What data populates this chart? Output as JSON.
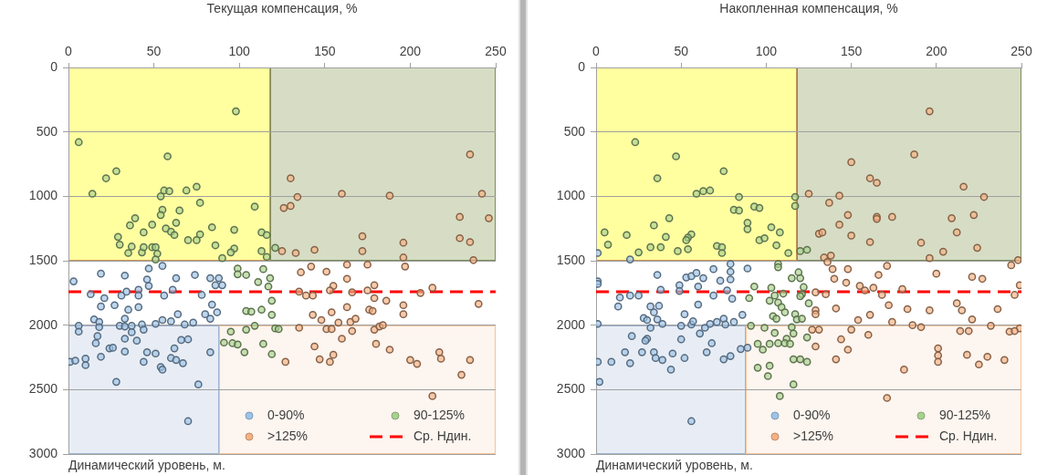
{
  "chart_data": [
    {
      "type": "scatter",
      "xlabel": "Текущая компенсация, %",
      "annotations": [
        "Динамический уровень, м."
      ],
      "xlim": [
        0,
        250
      ],
      "xticks": [
        0,
        50,
        100,
        150,
        200,
        250
      ],
      "ylim": [
        3000,
        0
      ],
      "yticks": [
        0,
        500,
        1000,
        1500,
        2000,
        2500,
        3000
      ],
      "grid": "y",
      "legend": "bottom right",
      "marker": "circle",
      "ref_lines": [
        {
          "axis": "y",
          "value": 1740,
          "label": "Ср. Ндин.",
          "color": "#ff0000",
          "line_style": "dashed"
        }
      ],
      "series": [
        {
          "name": "0-90%",
          "color": "#9dc3e6",
          "x": [
            3,
            19,
            33,
            47,
            55,
            46,
            47,
            63,
            74,
            83,
            88,
            86,
            90,
            61,
            13,
            21,
            31,
            34,
            41,
            41,
            56,
            78,
            19,
            27,
            35,
            41,
            84,
            87,
            80,
            64,
            83,
            15,
            18,
            6,
            6,
            18,
            30,
            33,
            33,
            37,
            43,
            44,
            37,
            51,
            55,
            60,
            68,
            73,
            17,
            16,
            33,
            40,
            24,
            26,
            33,
            19,
            46,
            51,
            44,
            62,
            66,
            70,
            83,
            1,
            4,
            10,
            10,
            54,
            55,
            60,
            63,
            67,
            28,
            76,
            70
          ],
          "values": [
            1660,
            1600,
            1615,
            1560,
            1540,
            1645,
            1695,
            1635,
            1610,
            1635,
            1635,
            1690,
            1690,
            1725,
            1760,
            1790,
            1770,
            1740,
            1725,
            1770,
            1770,
            1765,
            1855,
            1845,
            1880,
            1860,
            1840,
            1900,
            1915,
            1915,
            1950,
            1955,
            1975,
            2005,
            2050,
            2015,
            2005,
            1950,
            2010,
            2005,
            1995,
            2035,
            2055,
            1990,
            1960,
            1970,
            1995,
            1980,
            2085,
            2140,
            2105,
            2120,
            2180,
            2175,
            2205,
            2245,
            2210,
            2220,
            2285,
            2180,
            2115,
            2110,
            2210,
            2285,
            2275,
            2260,
            2310,
            2325,
            2345,
            2255,
            2270,
            2295,
            2440,
            2460,
            2745
          ]
        },
        {
          "name": "90-125%",
          "color": "#a9d18e",
          "x": [
            98,
            6,
            58,
            28,
            22,
            14,
            56,
            59,
            54,
            69,
            75,
            77,
            109,
            55,
            65,
            54,
            39,
            36,
            49,
            63,
            57,
            60,
            62,
            44,
            29,
            30,
            37,
            35,
            43,
            44,
            49,
            51,
            52,
            51,
            70,
            75,
            77,
            84,
            86,
            90,
            97,
            97,
            95,
            113,
            116,
            113,
            116,
            121,
            99,
            99,
            104,
            114,
            118,
            111,
            117,
            119,
            104,
            107,
            113,
            119,
            109,
            121,
            123,
            95,
            104,
            91,
            96,
            99,
            103,
            114,
            119
          ],
          "values": [
            340,
            580,
            690,
            805,
            860,
            980,
            955,
            960,
            1000,
            955,
            925,
            1050,
            1080,
            1105,
            1110,
            1145,
            1170,
            1225,
            1220,
            1205,
            1250,
            1275,
            1300,
            1280,
            1315,
            1375,
            1390,
            1440,
            1435,
            1395,
            1395,
            1395,
            1445,
            1490,
            1340,
            1340,
            1295,
            1240,
            1380,
            1480,
            1260,
            1405,
            1435,
            1280,
            1300,
            1425,
            1470,
            1400,
            1560,
            1605,
            1610,
            1565,
            1635,
            1665,
            1700,
            1810,
            1890,
            1895,
            1880,
            1920,
            2005,
            2025,
            2030,
            2050,
            2035,
            2135,
            2140,
            2150,
            2210,
            2145,
            2225
          ]
        },
        {
          "name": ">125%",
          "color": "#f4b183",
          "x": [
            235,
            130,
            134,
            160,
            188,
            242,
            126,
            130,
            229,
            246,
            172,
            196,
            229,
            235,
            125,
            133,
            144,
            172,
            196,
            237,
            136,
            142,
            151,
            163,
            175,
            197,
            163,
            155,
            153,
            179,
            175,
            166,
            135,
            139,
            143,
            213,
            206,
            179,
            186,
            196,
            196,
            240,
            163,
            176,
            178,
            154,
            143,
            148,
            158,
            165,
            168,
            135,
            151,
            154,
            166,
            179,
            182,
            184,
            160,
            144,
            180,
            188,
            147,
            153,
            155,
            127,
            200,
            204,
            217,
            218,
            235,
            230,
            213
          ],
          "values": [
            675,
            860,
            1005,
            980,
            995,
            980,
            1090,
            1075,
            1160,
            1170,
            1310,
            1360,
            1325,
            1355,
            1425,
            1440,
            1415,
            1425,
            1475,
            1495,
            1590,
            1545,
            1585,
            1530,
            1530,
            1545,
            1640,
            1695,
            1730,
            1690,
            1730,
            1745,
            1740,
            1770,
            1770,
            1710,
            1750,
            1790,
            1810,
            1845,
            1915,
            1835,
            1860,
            1880,
            1890,
            1900,
            1920,
            1960,
            1980,
            1975,
            1950,
            2020,
            2030,
            2030,
            2045,
            2035,
            2010,
            2000,
            2105,
            2165,
            2145,
            2190,
            2265,
            2285,
            2230,
            2285,
            2270,
            2300,
            2210,
            2260,
            2270,
            2385,
            2550
          ]
        }
      ]
    },
    {
      "type": "scatter",
      "xlabel": "Накопленная компенсация, %",
      "annotations": [
        "Динамический уровень, м."
      ],
      "xlim": [
        0,
        250
      ],
      "xticks": [
        0,
        50,
        100,
        150,
        200,
        250
      ],
      "ylim": [
        3000,
        0
      ],
      "yticks": [
        0,
        500,
        1000,
        1500,
        2000,
        2500,
        3000
      ],
      "grid": "y",
      "legend": "bottom right",
      "marker": "circle",
      "ref_lines": [
        {
          "axis": "y",
          "value": 1740,
          "label": "Ср. Ндин.",
          "color": "#ff0000",
          "line_style": "dashed"
        }
      ],
      "series": [
        {
          "name": "0-90%",
          "color": "#9dc3e6",
          "x": [
            1,
            20,
            1,
            1,
            36,
            49,
            49,
            53,
            56,
            59,
            63,
            60,
            38,
            69,
            73,
            77,
            79,
            79,
            79,
            89,
            80,
            69,
            60,
            14,
            20,
            25,
            13,
            32,
            37,
            34,
            28,
            30,
            36,
            39,
            32,
            52,
            50,
            56,
            57,
            61,
            64,
            67,
            71,
            75,
            76,
            81,
            86,
            1,
            21,
            30,
            29,
            50,
            68,
            65,
            17,
            27,
            34,
            35,
            39,
            45,
            52,
            75,
            79,
            85,
            89,
            1,
            9,
            20,
            44,
            2,
            56
          ],
          "values": [
            1440,
            1490,
            1660,
            1680,
            1610,
            1690,
            1735,
            1630,
            1620,
            1595,
            1635,
            1700,
            1725,
            1565,
            1655,
            1730,
            1525,
            1585,
            1645,
            1560,
            1795,
            1770,
            1840,
            1785,
            1770,
            1770,
            1855,
            1855,
            1850,
            1900,
            1945,
            1960,
            1955,
            1990,
            2020,
            1915,
            2005,
            1995,
            1970,
            2065,
            2020,
            1990,
            1975,
            1950,
            1995,
            1975,
            1920,
            1990,
            2085,
            2105,
            2120,
            2110,
            2140,
            2210,
            2210,
            2210,
            2210,
            2255,
            2270,
            2220,
            2255,
            2265,
            2240,
            2185,
            2175,
            2285,
            2285,
            2295,
            2345,
            2440,
            2745
          ]
        },
        {
          "name": "90-125%",
          "color": "#a9d18e",
          "x": [
            23,
            47,
            36,
            75,
            59,
            63,
            67,
            84,
            117,
            117,
            81,
            84,
            93,
            96,
            43,
            34,
            89,
            89,
            103,
            108,
            5,
            18,
            7,
            41,
            56,
            54,
            53,
            32,
            38,
            25,
            48,
            54,
            71,
            74,
            74,
            96,
            99,
            106,
            113,
            120,
            124,
            107,
            107,
            115,
            119,
            120,
            122,
            121,
            120,
            110,
            93,
            103,
            105,
            90,
            102,
            107,
            125,
            109,
            104,
            111,
            117,
            118,
            121,
            106,
            91,
            99,
            105,
            115,
            116,
            112,
            124,
            95,
            102,
            107,
            111,
            114,
            98,
            116,
            120,
            124,
            95,
            102,
            101,
            116,
            108
          ],
          "values": [
            580,
            690,
            860,
            805,
            980,
            960,
            955,
            1005,
            1005,
            1075,
            1105,
            1110,
            1080,
            1090,
            1170,
            1225,
            1205,
            1255,
            1240,
            1280,
            1280,
            1300,
            1375,
            1315,
            1295,
            1320,
            1340,
            1395,
            1395,
            1435,
            1425,
            1410,
            1385,
            1395,
            1440,
            1340,
            1325,
            1380,
            1440,
            1425,
            1415,
            1525,
            1550,
            1635,
            1590,
            1635,
            1705,
            1760,
            1775,
            1755,
            1700,
            1710,
            1770,
            1790,
            1810,
            1825,
            1830,
            1860,
            1930,
            1900,
            1915,
            1955,
            1950,
            1950,
            2005,
            2020,
            2060,
            2015,
            2065,
            2105,
            2095,
            2145,
            2145,
            2140,
            2140,
            2145,
            2190,
            2265,
            2265,
            2285,
            2330,
            2315,
            2395,
            2460,
            2550
          ]
        },
        {
          "name": ">125%",
          "color": "#f4b183",
          "x": [
            196,
            187,
            150,
            161,
            165,
            216,
            125,
            143,
            228,
            137,
            148,
            165,
            165,
            174,
            209,
            222,
            143,
            212,
            131,
            133,
            150,
            161,
            191,
            204,
            224,
            196,
            134,
            138,
            136,
            139,
            148,
            171,
            166,
            140,
            147,
            155,
            158,
            163,
            168,
            129,
            135,
            180,
            200,
            221,
            227,
            244,
            248,
            249,
            246,
            172,
            183,
            196,
            212,
            215,
            236,
            129,
            129,
            141,
            161,
            154,
            174,
            186,
            191,
            221,
            232,
            127,
            131,
            150,
            160,
            214,
            219,
            243,
            249,
            246,
            144,
            129,
            148,
            141,
            201,
            201,
            201,
            218,
            225,
            230,
            240,
            181,
            171
          ],
          "values": [
            340,
            675,
            735,
            860,
            895,
            925,
            980,
            995,
            1005,
            1050,
            1145,
            1160,
            1175,
            1160,
            1170,
            1145,
            1220,
            1280,
            1290,
            1280,
            1305,
            1355,
            1360,
            1430,
            1400,
            1480,
            1475,
            1460,
            1510,
            1565,
            1565,
            1540,
            1610,
            1640,
            1670,
            1695,
            1730,
            1710,
            1765,
            1745,
            1760,
            1720,
            1600,
            1625,
            1640,
            1535,
            1495,
            1690,
            1765,
            1845,
            1875,
            1885,
            1830,
            1885,
            1875,
            1885,
            1915,
            1870,
            1920,
            1960,
            1975,
            2000,
            2015,
            1955,
            2005,
            2035,
            2035,
            2035,
            2075,
            2045,
            2045,
            2050,
            2025,
            2045,
            2110,
            2165,
            2190,
            2265,
            2180,
            2235,
            2285,
            2230,
            2305,
            2245,
            2270,
            2345,
            2565
          ]
        }
      ]
    }
  ]
}
